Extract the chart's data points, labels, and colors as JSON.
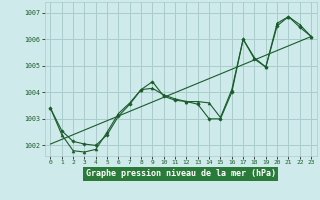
{
  "title": "Graphe pression niveau de la mer (hPa)",
  "bg_color": "#ceeaea",
  "grid_color": "#aacccc",
  "line_color": "#1a5c2a",
  "marker_color": "#1a5c2a",
  "xlim": [
    -0.5,
    23.5
  ],
  "ylim": [
    1001.6,
    1007.4
  ],
  "yticks": [
    1002,
    1003,
    1004,
    1005,
    1006,
    1007
  ],
  "xticks": [
    0,
    1,
    2,
    3,
    4,
    5,
    6,
    7,
    8,
    9,
    10,
    11,
    12,
    13,
    14,
    15,
    16,
    17,
    18,
    19,
    20,
    21,
    22,
    23
  ],
  "series1_x": [
    0,
    1,
    2,
    3,
    4,
    5,
    6,
    7,
    8,
    9,
    10,
    11,
    12,
    13,
    14,
    15,
    16,
    17,
    18,
    19,
    20,
    21,
    22,
    23
  ],
  "series1_y": [
    1003.4,
    1002.4,
    1001.8,
    1001.75,
    1001.85,
    1002.5,
    1003.2,
    1003.6,
    1004.1,
    1004.15,
    1003.9,
    1003.75,
    1003.65,
    1003.65,
    1003.6,
    1003.05,
    1004.1,
    1006.0,
    1005.3,
    1004.95,
    1006.6,
    1006.85,
    1006.55,
    1006.1
  ],
  "series2_x": [
    0,
    1,
    2,
    3,
    4,
    5,
    6,
    7,
    8,
    9,
    10,
    11,
    12,
    13,
    14,
    15,
    16,
    17,
    18,
    19,
    20,
    21,
    22,
    23
  ],
  "series2_y": [
    1003.4,
    1002.55,
    1002.15,
    1002.05,
    1002.0,
    1002.4,
    1003.1,
    1003.55,
    1004.1,
    1004.4,
    1003.85,
    1003.7,
    1003.65,
    1003.55,
    1003.0,
    1003.0,
    1004.0,
    1006.0,
    1005.25,
    1004.95,
    1006.5,
    1006.85,
    1006.45,
    1006.1
  ],
  "trend_x": [
    0,
    23
  ],
  "trend_y": [
    1002.05,
    1006.1
  ]
}
